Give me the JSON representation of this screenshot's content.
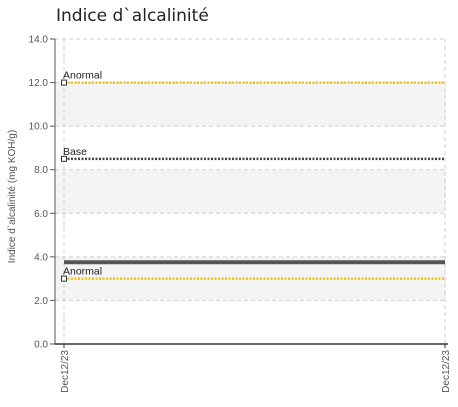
{
  "chart_data": {
    "type": "line",
    "title": "Indice d`alcalinité",
    "ylabel": "Indice d`alcalinité (mg KOH/g)",
    "xlabel": "",
    "ylim": [
      0,
      14
    ],
    "yticks": [
      "0.0",
      "2.0",
      "4.0",
      "6.0",
      "8.0",
      "10.0",
      "12.0",
      "14.0"
    ],
    "x_categories": [
      "Dec12/23",
      "Dec12/23"
    ],
    "grid": true,
    "reference_lines": [
      {
        "label": "Anormal",
        "value": 12.0,
        "color": "#f5c400",
        "style": "dotted"
      },
      {
        "label": "Base",
        "value": 8.5,
        "color": "#444444",
        "style": "dotted"
      },
      {
        "label": "Anormal",
        "value": 3.0,
        "color": "#f5c400",
        "style": "dotted"
      }
    ],
    "series": [
      {
        "values": [
          3.75,
          3.75
        ],
        "color": "#555555"
      }
    ]
  }
}
